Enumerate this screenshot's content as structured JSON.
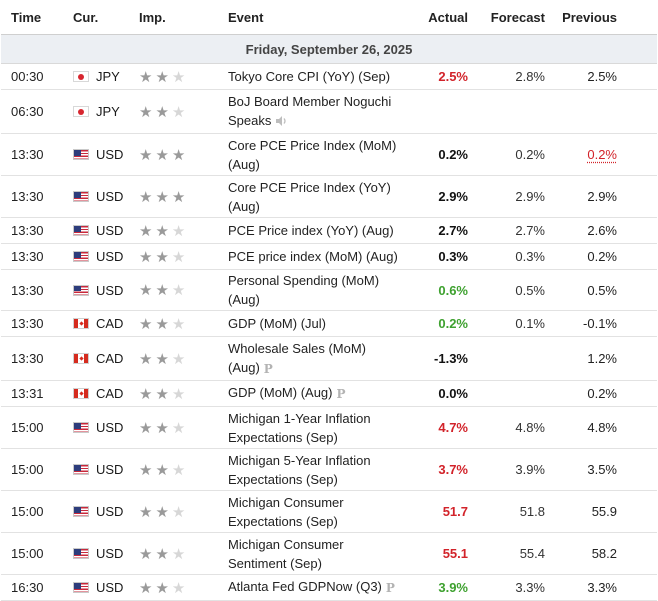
{
  "headers": {
    "time": "Time",
    "currency": "Cur.",
    "importance": "Imp.",
    "event": "Event",
    "actual": "Actual",
    "forecast": "Forecast",
    "previous": "Previous"
  },
  "date_label": "Friday, September 26, 2025",
  "colors": {
    "red": "#d2232a",
    "green": "#3ea12f",
    "day_bg": "#eceff3",
    "star_on": "#9a9a9a",
    "star_off": "#d7d7d7"
  },
  "events": [
    {
      "time": "00:30",
      "currency": "JPY",
      "flag": "flag-jp",
      "stars": 2,
      "event": "Tokyo Core CPI (YoY) (Sep)",
      "extra_icon": "",
      "actual": "2.5%",
      "actual_color": "red",
      "forecast": "2.8%",
      "previous": "2.5%",
      "previous_revised": false
    },
    {
      "time": "06:30",
      "currency": "JPY",
      "flag": "flag-jp",
      "stars": 2,
      "event": "BoJ Board Member Noguchi Speaks",
      "extra_icon": "speaker-icon",
      "actual": "",
      "actual_color": "black",
      "forecast": "",
      "previous": "",
      "previous_revised": false
    },
    {
      "time": "13:30",
      "currency": "USD",
      "flag": "flag-us",
      "stars": 3,
      "event": "Core PCE Price Index (MoM) (Aug)",
      "extra_icon": "",
      "actual": "0.2%",
      "actual_color": "black",
      "forecast": "0.2%",
      "previous": "0.2%",
      "previous_revised": true
    },
    {
      "time": "13:30",
      "currency": "USD",
      "flag": "flag-us",
      "stars": 3,
      "event": "Core PCE Price Index (YoY) (Aug)",
      "extra_icon": "",
      "actual": "2.9%",
      "actual_color": "black",
      "forecast": "2.9%",
      "previous": "2.9%",
      "previous_revised": false
    },
    {
      "time": "13:30",
      "currency": "USD",
      "flag": "flag-us",
      "stars": 2,
      "event": "PCE Price index (YoY) (Aug)",
      "extra_icon": "",
      "actual": "2.7%",
      "actual_color": "black",
      "forecast": "2.7%",
      "previous": "2.6%",
      "previous_revised": false
    },
    {
      "time": "13:30",
      "currency": "USD",
      "flag": "flag-us",
      "stars": 2,
      "event": "PCE price index (MoM) (Aug)",
      "extra_icon": "",
      "actual": "0.3%",
      "actual_color": "black",
      "forecast": "0.3%",
      "previous": "0.2%",
      "previous_revised": false
    },
    {
      "time": "13:30",
      "currency": "USD",
      "flag": "flag-us",
      "stars": 2,
      "event": "Personal Spending (MoM) (Aug)",
      "extra_icon": "",
      "actual": "0.6%",
      "actual_color": "green",
      "forecast": "0.5%",
      "previous": "0.5%",
      "previous_revised": false
    },
    {
      "time": "13:30",
      "currency": "CAD",
      "flag": "flag-ca",
      "stars": 2,
      "event": "GDP (MoM) (Jul)",
      "extra_icon": "",
      "actual": "0.2%",
      "actual_color": "green",
      "forecast": "0.1%",
      "previous": "-0.1%",
      "previous_revised": false
    },
    {
      "time": "13:30",
      "currency": "CAD",
      "flag": "flag-ca",
      "stars": 2,
      "event": "Wholesale Sales (MoM) (Aug)",
      "extra_icon": "prelim-icon",
      "actual": "-1.3%",
      "actual_color": "black",
      "forecast": "",
      "previous": "1.2%",
      "previous_revised": false
    },
    {
      "time": "13:31",
      "currency": "CAD",
      "flag": "flag-ca",
      "stars": 2,
      "event": "GDP (MoM) (Aug)",
      "extra_icon": "prelim-icon",
      "actual": "0.0%",
      "actual_color": "black",
      "forecast": "",
      "previous": "0.2%",
      "previous_revised": false
    },
    {
      "time": "15:00",
      "currency": "USD",
      "flag": "flag-us",
      "stars": 2,
      "event": "Michigan 1-Year Inflation Expectations (Sep)",
      "extra_icon": "",
      "actual": "4.7%",
      "actual_color": "red",
      "forecast": "4.8%",
      "previous": "4.8%",
      "previous_revised": false
    },
    {
      "time": "15:00",
      "currency": "USD",
      "flag": "flag-us",
      "stars": 2,
      "event": "Michigan 5-Year Inflation Expectations (Sep)",
      "extra_icon": "",
      "actual": "3.7%",
      "actual_color": "red",
      "forecast": "3.9%",
      "previous": "3.5%",
      "previous_revised": false
    },
    {
      "time": "15:00",
      "currency": "USD",
      "flag": "flag-us",
      "stars": 2,
      "event": "Michigan Consumer Expectations (Sep)",
      "extra_icon": "",
      "actual": "51.7",
      "actual_color": "red",
      "forecast": "51.8",
      "previous": "55.9",
      "previous_revised": false
    },
    {
      "time": "15:00",
      "currency": "USD",
      "flag": "flag-us",
      "stars": 2,
      "event": "Michigan Consumer Sentiment (Sep)",
      "extra_icon": "",
      "actual": "55.1",
      "actual_color": "red",
      "forecast": "55.4",
      "previous": "58.2",
      "previous_revised": false
    },
    {
      "time": "16:30",
      "currency": "USD",
      "flag": "flag-us",
      "stars": 2,
      "event": "Atlanta Fed GDPNow (Q3)",
      "extra_icon": "prelim-icon",
      "actual": "3.9%",
      "actual_color": "green",
      "forecast": "3.3%",
      "previous": "3.3%",
      "previous_revised": false
    }
  ]
}
